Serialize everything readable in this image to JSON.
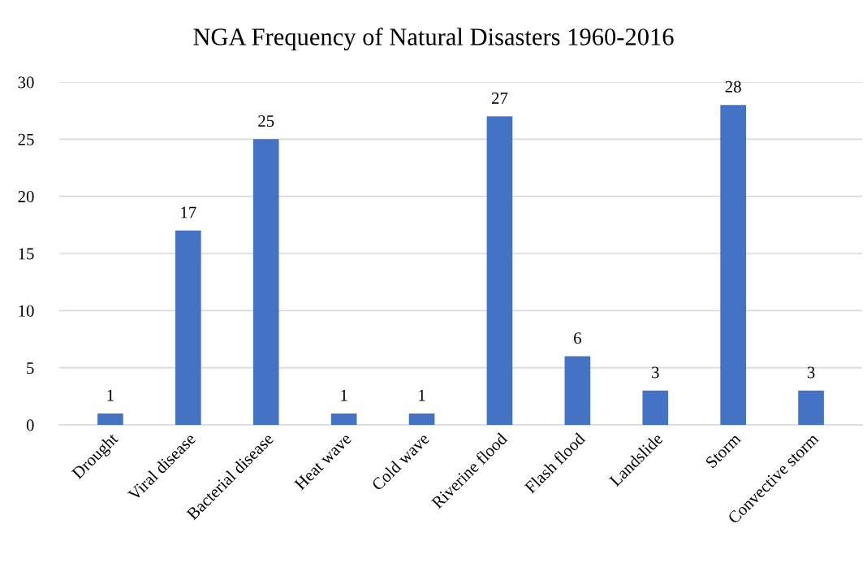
{
  "chart_data": {
    "type": "bar",
    "title": "NGA Frequency of Natural Disasters 1960-2016",
    "categories": [
      "Drought",
      "Viral disease",
      "Bacterial disease",
      "Heat wave",
      "Cold wave",
      "Riverine flood",
      "Flash flood",
      "Landslide",
      "Storm",
      "Convective storm"
    ],
    "values": [
      1,
      17,
      25,
      1,
      1,
      27,
      6,
      3,
      28,
      3
    ],
    "color": "#4472c4",
    "ylim": [
      0,
      30
    ],
    "yticks": [
      0,
      5,
      10,
      15,
      20,
      25,
      30
    ],
    "grid": "y",
    "data_labels": true
  }
}
